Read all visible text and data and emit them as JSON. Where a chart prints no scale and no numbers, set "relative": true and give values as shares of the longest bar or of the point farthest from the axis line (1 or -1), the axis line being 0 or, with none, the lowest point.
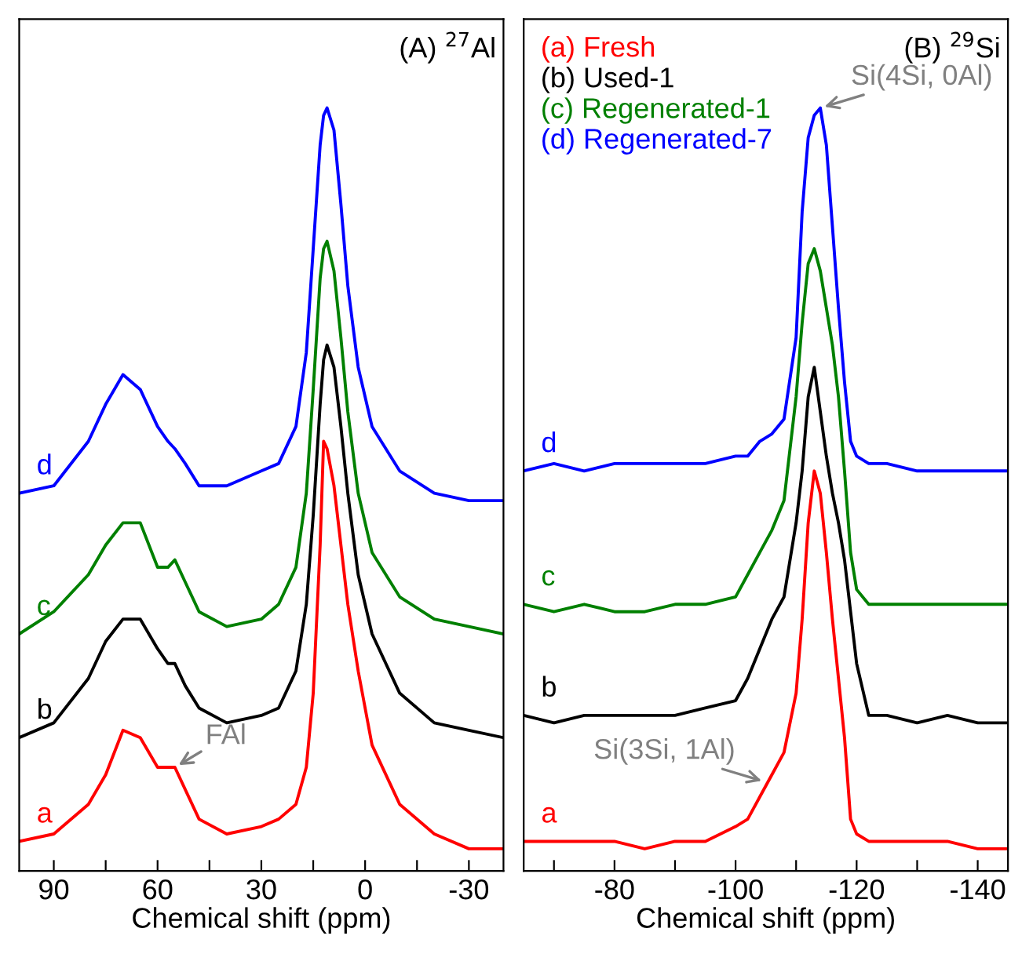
{
  "chart_data": [
    {
      "type": "line",
      "relative": true,
      "title": "(A) $^{27}$Al",
      "xlabel": "Chemical shift (ppm)",
      "xlim": [
        100,
        -40
      ],
      "xticks": [
        90,
        {
          "value": 75,
          "label": null
        },
        60,
        {
          "value": 45,
          "label": null
        },
        30,
        {
          "value": 15,
          "label": null
        },
        0,
        {
          "value": -15,
          "label": null
        },
        -30
      ],
      "tick_labels": "x",
      "grid": false,
      "legend": false,
      "x": [
        100,
        90,
        80,
        75,
        70,
        65,
        60,
        57,
        55,
        52,
        48,
        40,
        30,
        25,
        20,
        17,
        15,
        13,
        12,
        11,
        9,
        7,
        5,
        2,
        -2,
        -10,
        -20,
        -30,
        -40
      ],
      "series": [
        {
          "name": "a",
          "color": "#ff0000",
          "values": [
            0.01,
            0.02,
            0.06,
            0.1,
            0.16,
            0.15,
            0.11,
            0.11,
            0.11,
            0.08,
            0.04,
            0.02,
            0.03,
            0.04,
            0.06,
            0.11,
            0.21,
            0.41,
            0.55,
            0.54,
            0.49,
            0.41,
            0.33,
            0.24,
            0.14,
            0.06,
            0.02,
            0.0,
            0.0
          ]
        },
        {
          "name": "b",
          "color": "#000000",
          "values": [
            0.15,
            0.17,
            0.23,
            0.28,
            0.31,
            0.31,
            0.27,
            0.25,
            0.25,
            0.22,
            0.19,
            0.17,
            0.18,
            0.19,
            0.24,
            0.33,
            0.45,
            0.6,
            0.66,
            0.68,
            0.65,
            0.57,
            0.48,
            0.37,
            0.29,
            0.21,
            0.17,
            0.16,
            0.15
          ]
        },
        {
          "name": "c",
          "color": "#008000",
          "values": [
            0.29,
            0.32,
            0.37,
            0.41,
            0.44,
            0.44,
            0.38,
            0.38,
            0.39,
            0.36,
            0.32,
            0.3,
            0.31,
            0.33,
            0.38,
            0.48,
            0.62,
            0.77,
            0.81,
            0.82,
            0.78,
            0.69,
            0.59,
            0.48,
            0.4,
            0.34,
            0.31,
            0.3,
            0.29
          ]
        },
        {
          "name": "d",
          "color": "#0000ff",
          "values": [
            0.48,
            0.49,
            0.55,
            0.6,
            0.64,
            0.62,
            0.57,
            0.55,
            0.54,
            0.52,
            0.49,
            0.49,
            0.51,
            0.52,
            0.57,
            0.67,
            0.81,
            0.95,
            0.99,
            1.0,
            0.97,
            0.87,
            0.76,
            0.65,
            0.57,
            0.51,
            0.48,
            0.47,
            0.47
          ]
        }
      ],
      "annotations": [
        {
          "text": "FAl",
          "x": 55,
          "y": 0.11
        }
      ]
    },
    {
      "type": "line",
      "relative": true,
      "title": "(B) $^{29}$Si",
      "xlabel": "Chemical shift (ppm)",
      "xlim": [
        -65,
        -145
      ],
      "xticks": [
        {
          "value": -70,
          "label": null
        },
        -80,
        {
          "value": -90,
          "label": null
        },
        -100,
        {
          "value": -110,
          "label": null
        },
        -120,
        {
          "value": -130,
          "label": null
        },
        -140
      ],
      "tick_labels": "x",
      "grid": false,
      "legend": "top left",
      "x": [
        -65,
        -70,
        -75,
        -80,
        -85,
        -90,
        -95,
        -100,
        -102,
        -104,
        -106,
        -108,
        -110,
        -111,
        -112,
        -113,
        -114,
        -115,
        -116,
        -117,
        -118,
        -119,
        -120,
        -122,
        -125,
        -130,
        -135,
        -140,
        -145
      ],
      "series": [
        {
          "name": "(a) Fresh",
          "color": "#ff0000",
          "values": [
            0.01,
            0.01,
            0.01,
            0.01,
            0.0,
            0.01,
            0.01,
            0.03,
            0.04,
            0.07,
            0.1,
            0.13,
            0.21,
            0.31,
            0.44,
            0.51,
            0.48,
            0.4,
            0.31,
            0.23,
            0.15,
            0.04,
            0.02,
            0.01,
            0.01,
            0.01,
            0.01,
            0.0,
            0.0
          ]
        },
        {
          "name": "(b) Used-1",
          "color": "#000000",
          "values": [
            0.18,
            0.17,
            0.18,
            0.18,
            0.18,
            0.18,
            0.19,
            0.2,
            0.23,
            0.27,
            0.31,
            0.34,
            0.44,
            0.51,
            0.61,
            0.65,
            0.59,
            0.53,
            0.48,
            0.44,
            0.39,
            0.32,
            0.25,
            0.18,
            0.18,
            0.17,
            0.18,
            0.17,
            0.17
          ]
        },
        {
          "name": "(c) Regenerated-1",
          "color": "#008000",
          "values": [
            0.33,
            0.32,
            0.33,
            0.32,
            0.32,
            0.33,
            0.33,
            0.34,
            0.37,
            0.4,
            0.43,
            0.47,
            0.61,
            0.71,
            0.79,
            0.81,
            0.78,
            0.73,
            0.68,
            0.61,
            0.51,
            0.4,
            0.35,
            0.33,
            0.33,
            0.33,
            0.33,
            0.33,
            0.33
          ]
        },
        {
          "name": "(d) Regenerated-7",
          "color": "#0000ff",
          "values": [
            0.51,
            0.52,
            0.51,
            0.52,
            0.52,
            0.52,
            0.52,
            0.53,
            0.53,
            0.55,
            0.56,
            0.58,
            0.69,
            0.86,
            0.96,
            0.99,
            1.0,
            0.95,
            0.84,
            0.73,
            0.63,
            0.55,
            0.53,
            0.52,
            0.52,
            0.51,
            0.51,
            0.51,
            0.51
          ]
        }
      ],
      "annotations": [
        "a",
        "b",
        "c",
        "d",
        {
          "text": "Si(4Si, 0Al)",
          "x": -114,
          "y": 1.0
        },
        {
          "text": "Si(3Si, 1Al)",
          "x": -105,
          "y": 0.09
        }
      ]
    }
  ]
}
